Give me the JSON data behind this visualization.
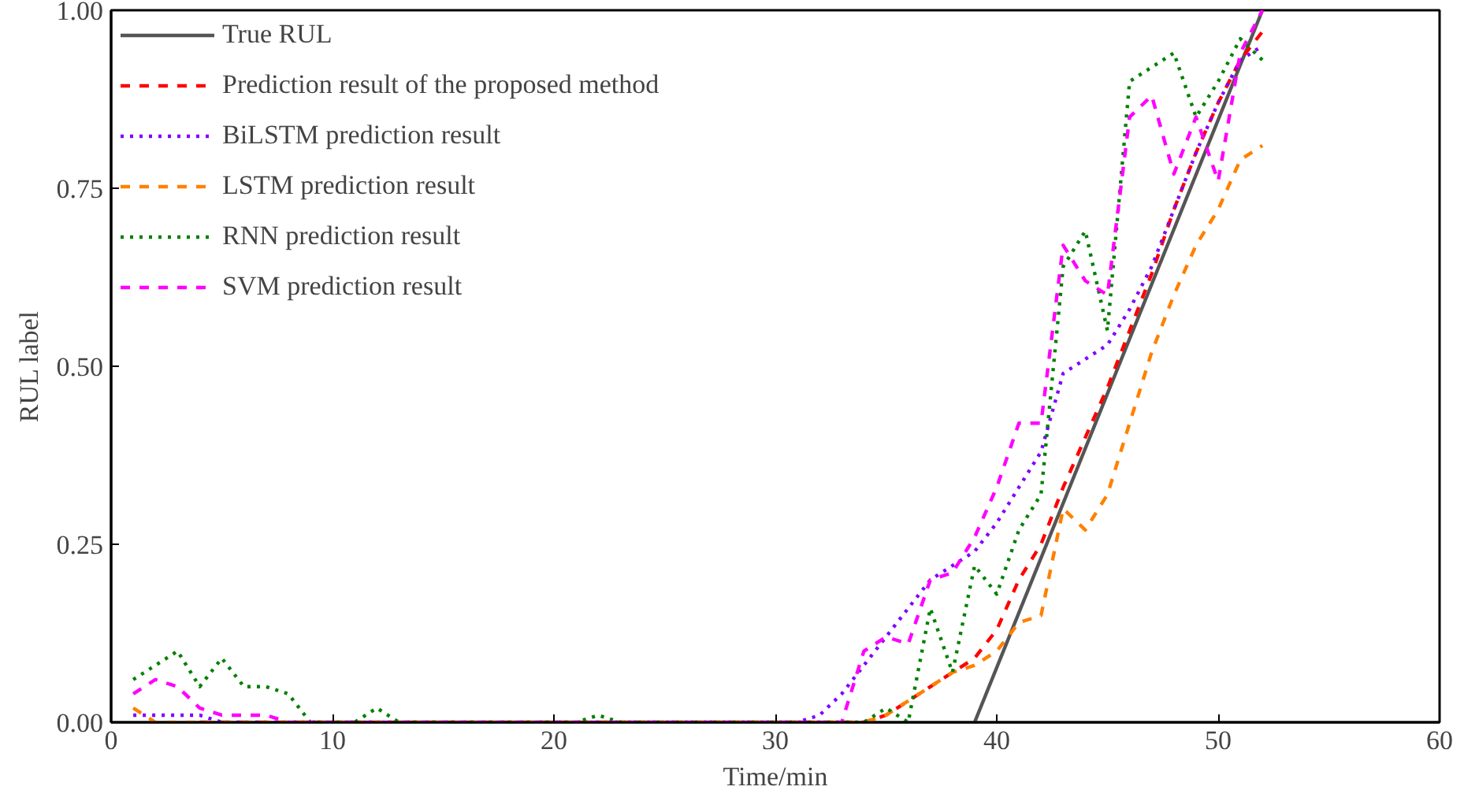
{
  "chart_data": {
    "type": "line",
    "xlabel": "Time/min",
    "ylabel": "RUL label",
    "x": [
      1,
      2,
      3,
      4,
      5,
      6,
      7,
      8,
      9,
      10,
      11,
      12,
      13,
      14,
      15,
      16,
      17,
      18,
      19,
      20,
      21,
      22,
      23,
      24,
      25,
      26,
      27,
      28,
      29,
      30,
      31,
      32,
      33,
      34,
      35,
      36,
      37,
      38,
      39,
      40,
      41,
      42,
      43,
      44,
      45,
      46,
      47,
      48,
      49,
      50,
      51,
      52
    ],
    "xlim": [
      0,
      60
    ],
    "xticks": [
      0,
      10,
      20,
      30,
      40,
      50,
      60
    ],
    "ylim": [
      0,
      1
    ],
    "yticks": [
      {
        "value": 0,
        "label": "0.00"
      },
      {
        "value": 0.25,
        "label": "0.25"
      },
      {
        "value": 0.5,
        "label": "0.50"
      },
      {
        "value": 0.75,
        "label": "0.75"
      },
      {
        "value": 1,
        "label": "1.00"
      }
    ],
    "grid": false,
    "legend": "top left",
    "series": [
      {
        "name": "True RUL",
        "color": "#555555",
        "line_style": "solid",
        "x": [
          39,
          52
        ],
        "values": [
          0,
          1
        ]
      },
      {
        "name": "Prediction result of the proposed method",
        "color": "#ff0000",
        "line_style": "dashed",
        "values": [
          null,
          null,
          null,
          0,
          0,
          0,
          0,
          0,
          0,
          0,
          0,
          0,
          0,
          0,
          0,
          0,
          0,
          0,
          0,
          0,
          0,
          0,
          0,
          0,
          0,
          0,
          0,
          0,
          0,
          0,
          0,
          0,
          0,
          0,
          0.01,
          0.03,
          0.05,
          0.07,
          0.09,
          0.13,
          0.2,
          0.25,
          0.33,
          0.4,
          0.47,
          0.55,
          0.63,
          0.72,
          0.8,
          0.87,
          0.93,
          0.97
        ]
      },
      {
        "name": "BiLSTM prediction result",
        "color": "#8000ff",
        "line_style": "dotted",
        "values": [
          0.01,
          0.01,
          0.01,
          0.01,
          0,
          0,
          0,
          0,
          0,
          0,
          0,
          0,
          0,
          0,
          0,
          0,
          0,
          0,
          0,
          0,
          0,
          0,
          0,
          0,
          0,
          0,
          0,
          0,
          0,
          0,
          0,
          0.01,
          0.04,
          0.08,
          0.12,
          0.16,
          0.2,
          0.22,
          0.24,
          0.28,
          0.33,
          0.38,
          0.49,
          0.51,
          0.53,
          0.58,
          0.64,
          0.72,
          0.8,
          0.87,
          0.93,
          0.95
        ]
      },
      {
        "name": "LSTM prediction result",
        "color": "#ff8000",
        "line_style": "dashed",
        "values": [
          0.02,
          0,
          0,
          0,
          0,
          0,
          0,
          0,
          0,
          0,
          0,
          0,
          0,
          0,
          0,
          0,
          0,
          0,
          0,
          0,
          0,
          0,
          0,
          0,
          0,
          0,
          0,
          0,
          0,
          0,
          0,
          0,
          0,
          0,
          0.01,
          0.03,
          0.05,
          0.07,
          0.08,
          0.1,
          0.14,
          0.15,
          0.3,
          0.27,
          0.32,
          0.42,
          0.52,
          0.6,
          0.67,
          0.72,
          0.79,
          0.81
        ]
      },
      {
        "name": "RNN prediction result",
        "color": "#008000",
        "line_style": "dotted",
        "values": [
          0.06,
          0.08,
          0.1,
          0.05,
          0.09,
          0.05,
          0.05,
          0.04,
          0,
          0,
          0,
          0.02,
          0,
          0,
          0,
          0,
          0,
          0,
          0,
          0,
          0,
          0.01,
          0,
          0,
          0,
          0,
          0,
          0,
          0,
          0,
          0,
          0,
          0,
          0,
          0.02,
          0,
          0.16,
          0.07,
          0.22,
          0.18,
          0.27,
          0.32,
          0.64,
          0.69,
          0.55,
          0.9,
          0.92,
          0.94,
          0.85,
          0.9,
          0.96,
          0.93
        ]
      },
      {
        "name": "SVM prediction result",
        "color": "#ff00ff",
        "line_style": "dashed",
        "values": [
          0.04,
          0.06,
          0.05,
          0.02,
          0.01,
          0.01,
          0.01,
          0,
          0,
          0,
          0,
          0,
          0,
          0,
          0,
          0,
          0,
          0,
          0,
          0,
          0,
          0,
          0,
          0,
          0,
          0,
          0,
          0,
          0,
          0,
          0,
          0,
          0,
          0.1,
          0.12,
          0.11,
          0.2,
          0.21,
          0.26,
          0.33,
          0.42,
          0.42,
          0.67,
          0.62,
          0.6,
          0.85,
          0.88,
          0.77,
          0.85,
          0.76,
          0.94,
          1.0
        ]
      }
    ]
  }
}
